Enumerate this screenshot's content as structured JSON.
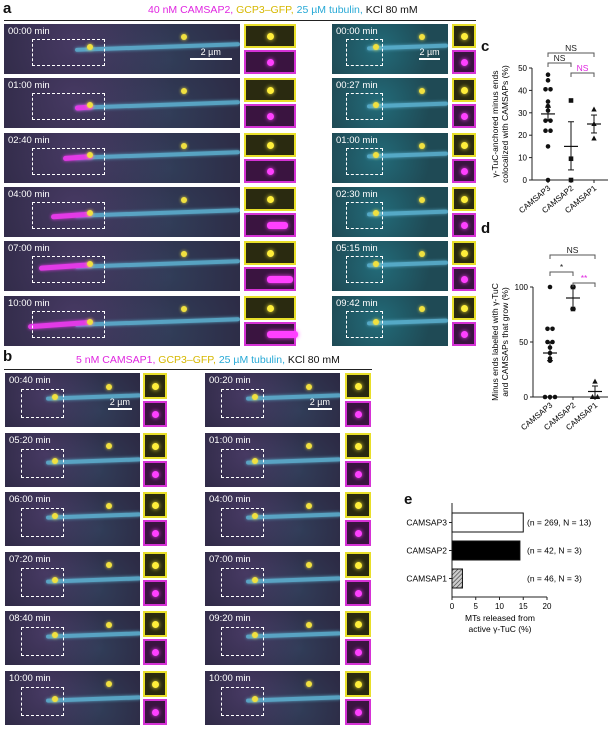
{
  "panel_a": {
    "label": "a",
    "header": {
      "camsap": "40 nM CAMSAP2,",
      "gcp": "GCP3–GFP,",
      "tubulin": "25 µM tubulin,",
      "kcl": "KCl 80 mM"
    },
    "scale_bar": "2 µm",
    "left_times": [
      "00:00 min",
      "01:00 min",
      "02:40 min",
      "04:00 min",
      "07:00 min",
      "10:00 min"
    ],
    "right_times": [
      "00:00 min",
      "00:27 min",
      "01:00 min",
      "02:30 min",
      "05:15 min",
      "09:42 min"
    ]
  },
  "panel_b": {
    "label": "b",
    "header": {
      "camsap": "5 nM CAMSAP1,",
      "gcp": "GCP3–GFP,",
      "tubulin": "25 µM tubulin,",
      "kcl": "KCl 80 mM"
    },
    "scale_bar": "2 µm",
    "left_times": [
      "00:40 min",
      "05:20 min",
      "06:00 min",
      "07:20 min",
      "08:40 min",
      "10:00 min"
    ],
    "right_times": [
      "00:20 min",
      "01:00 min",
      "04:00 min",
      "07:00 min",
      "09:20 min",
      "10:00 min"
    ]
  },
  "chart_data": [
    {
      "panel": "c",
      "type": "scatter",
      "ylabel": [
        "γ-TuC-anchored minus ends",
        "colocalized with CAMSAPs (%)"
      ],
      "categories": [
        "CAMSAP3",
        "CAMSAP2",
        "CAMSAP1"
      ],
      "yticks": [
        0,
        10,
        20,
        30,
        40,
        50
      ],
      "ylim": [
        0,
        50
      ],
      "series": [
        {
          "name": "CAMSAP3",
          "marker": "circle",
          "values": [
            47,
            44.5,
            40.5,
            40.5,
            35,
            33,
            31,
            26.5,
            26.5,
            22,
            22,
            15,
            0
          ],
          "mean": 29.5,
          "sem": [
            26.5,
            32.5
          ]
        },
        {
          "name": "CAMSAP2",
          "marker": "square",
          "values": [
            35.5,
            9.5,
            0
          ],
          "mean": 15,
          "sem": [
            4.5,
            26
          ]
        },
        {
          "name": "CAMSAP1",
          "marker": "triangle",
          "values": [
            31.5,
            25,
            18.5
          ],
          "mean": 25,
          "sem": [
            21,
            29
          ]
        }
      ],
      "significance": [
        {
          "pair": [
            0,
            2
          ],
          "text": "NS",
          "color": "#222222"
        },
        {
          "pair": [
            0,
            1
          ],
          "text": "NS",
          "color": "#222222"
        },
        {
          "pair": [
            1,
            2
          ],
          "text": "NS",
          "color": "#e026e0"
        }
      ]
    },
    {
      "panel": "d",
      "type": "scatter",
      "ylabel": [
        "Minus ends labelled with γ-TuC",
        "and CAMSAPs that grow (%)"
      ],
      "categories": [
        "CAMSAP3",
        "CAMSAP2",
        "CAMSAP1"
      ],
      "yticks": [
        0,
        50,
        100
      ],
      "ylim": [
        0,
        100
      ],
      "series": [
        {
          "name": "CAMSAP3",
          "marker": "circle",
          "values": [
            100,
            62,
            62,
            50,
            50,
            45,
            40,
            35,
            33,
            0,
            0,
            0
          ],
          "mean": 40,
          "sem": [
            33,
            50
          ]
        },
        {
          "name": "CAMSAP2",
          "marker": "square",
          "values": [
            100,
            80
          ],
          "mean": 90,
          "sem": [
            80,
            100
          ]
        },
        {
          "name": "CAMSAP1",
          "marker": "triangle",
          "values": [
            14,
            0,
            0
          ],
          "mean": 5,
          "sem": [
            0,
            10
          ]
        }
      ],
      "significance": [
        {
          "pair": [
            0,
            2
          ],
          "text": "NS",
          "color": "#222222"
        },
        {
          "pair": [
            0,
            1
          ],
          "text": "*",
          "color": "#222222"
        },
        {
          "pair": [
            1,
            2
          ],
          "text": "**",
          "color": "#e026e0"
        }
      ]
    },
    {
      "panel": "e",
      "type": "bar",
      "orientation": "horizontal",
      "categories": [
        "CAMSAP3",
        "CAMSAP2",
        "CAMSAP1"
      ],
      "values": [
        15,
        14.3,
        2.2
      ],
      "fills": [
        "white",
        "black",
        "hatched"
      ],
      "annotations": [
        "(n = 269, N = 13)",
        "(n = 42, N = 3)",
        "(n = 46, N = 3)"
      ],
      "xticks": [
        0,
        5,
        10,
        15,
        20
      ],
      "xlim": [
        0,
        20
      ],
      "xlabel": [
        "MTs released from",
        "active γ-TuC (%)"
      ]
    }
  ]
}
